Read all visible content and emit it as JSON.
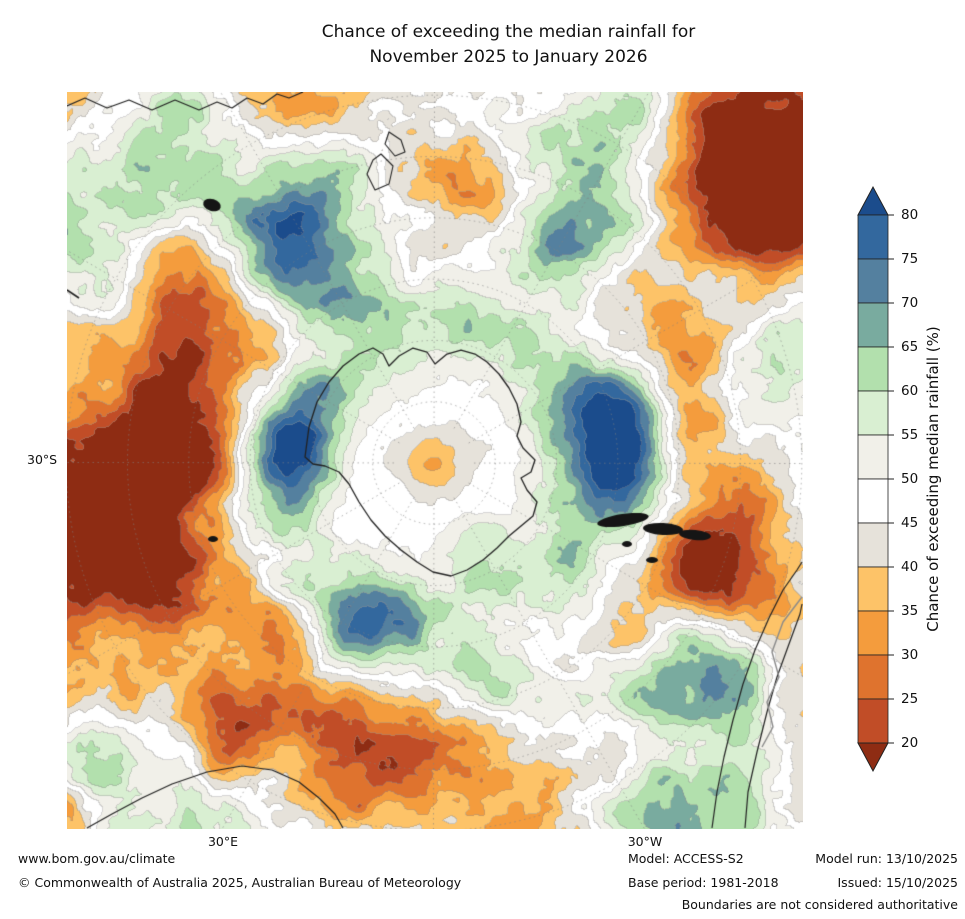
{
  "title": {
    "line1": "Chance of exceeding the median rainfall for",
    "line2": "November 2025 to January 2026"
  },
  "map_labels": {
    "lat": "30°S",
    "lon_left": "30°E",
    "lon_right": "30°W"
  },
  "colorbar": {
    "label": "Chance of exceeding median rainfall (%)",
    "tick_labels": [
      "80",
      "75",
      "70",
      "65",
      "60",
      "55",
      "50",
      "45",
      "40",
      "35",
      "30",
      "25",
      "20"
    ],
    "segment_colors_top_to_bottom": [
      "#33689e",
      "#54809f",
      "#79ab9f",
      "#b2e0ad",
      "#d9efd2",
      "#f1f0e9",
      "#ffffff",
      "#e6e2da",
      "#fdc368",
      "#f49c3d",
      "#df732e",
      "#c14d27"
    ],
    "arrow_top_color": "#1b4c8c",
    "arrow_bottom_color": "#8e2c13"
  },
  "footer": {
    "website": "www.bom.gov.au/climate",
    "copyright": "© Commonwealth of Australia 2025, Australian Bureau of Meteorology",
    "model": "Model: ACCESS-S2",
    "base_period": "Base period: 1981-2018",
    "model_run": "Model run: 13/10/2025",
    "issued": "Issued: 15/10/2025",
    "disclaimer": "Boundaries are not considered authoritative"
  }
}
